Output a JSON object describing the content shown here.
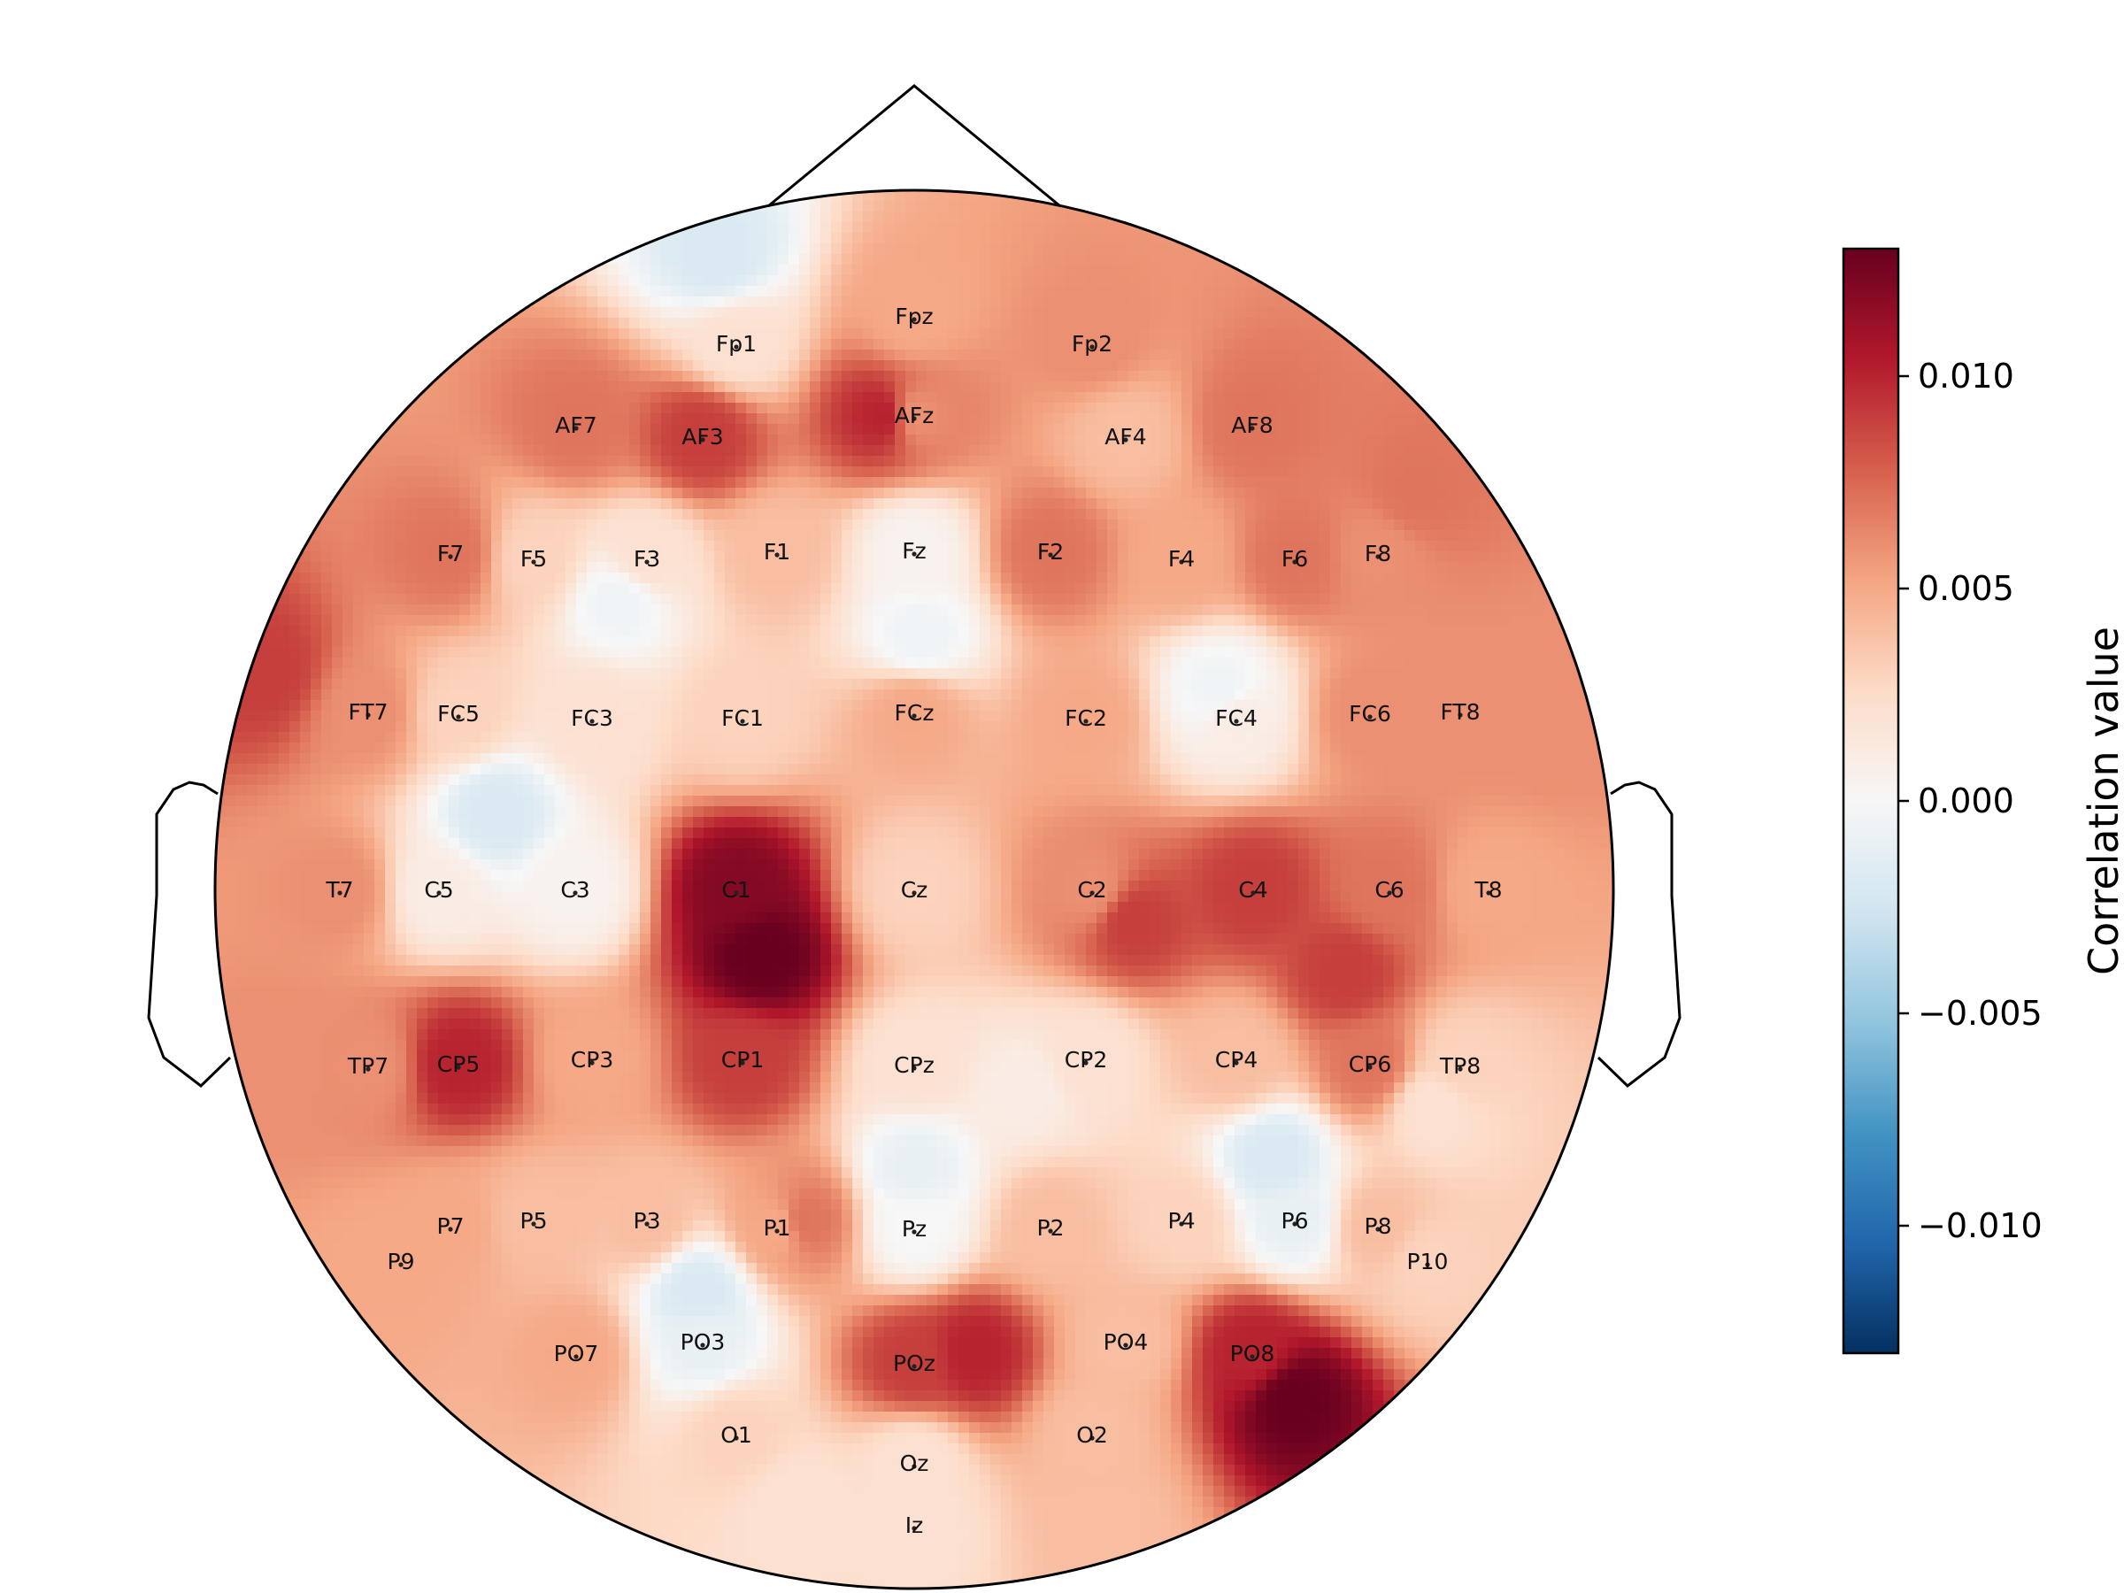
{
  "chart_data": {
    "type": "heatmap",
    "subtype": "eeg-topomap",
    "colormap": "RdBu_r",
    "colors": [
      "#053061",
      "#2166ac",
      "#4393c3",
      "#92c5de",
      "#d1e5f0",
      "#f7f7f7",
      "#fddbc7",
      "#f4a582",
      "#d6604d",
      "#b2182b",
      "#67001f"
    ],
    "colorbar": {
      "label": "Correlation value",
      "vmin": -0.013,
      "vmax": 0.013,
      "ticks": [
        {
          "value": -0.01,
          "label": "−0.010"
        },
        {
          "value": -0.005,
          "label": "−0.005"
        },
        {
          "value": 0.0,
          "label": "0.000"
        },
        {
          "value": 0.005,
          "label": "0.005"
        },
        {
          "value": 0.01,
          "label": "0.010"
        }
      ]
    },
    "electrodes": [
      {
        "name": "Fp1",
        "value": 0.002
      },
      {
        "name": "Fpz",
        "value": 0.005
      },
      {
        "name": "Fp2",
        "value": 0.006
      },
      {
        "name": "AF7",
        "value": 0.007
      },
      {
        "name": "AF3",
        "value": 0.009
      },
      {
        "name": "AFz",
        "value": 0.006
      },
      {
        "name": "AF4",
        "value": 0.004
      },
      {
        "name": "AF8",
        "value": 0.007
      },
      {
        "name": "F7",
        "value": 0.007
      },
      {
        "name": "F5",
        "value": 0.003
      },
      {
        "name": "F3",
        "value": 0.002
      },
      {
        "name": "F1",
        "value": 0.004
      },
      {
        "name": "Fz",
        "value": 0.0005
      },
      {
        "name": "F2",
        "value": 0.007
      },
      {
        "name": "F4",
        "value": 0.005
      },
      {
        "name": "F6",
        "value": 0.007
      },
      {
        "name": "F8",
        "value": 0.006
      },
      {
        "name": "FT7",
        "value": 0.006
      },
      {
        "name": "FC5",
        "value": 0.003
      },
      {
        "name": "FC3",
        "value": 0.002
      },
      {
        "name": "FC1",
        "value": 0.003
      },
      {
        "name": "FCz",
        "value": 0.005
      },
      {
        "name": "FC2",
        "value": 0.005
      },
      {
        "name": "FC4",
        "value": 0.001
      },
      {
        "name": "FC6",
        "value": 0.006
      },
      {
        "name": "FT8",
        "value": 0.006
      },
      {
        "name": "T7",
        "value": 0.006
      },
      {
        "name": "C5",
        "value": 0.001
      },
      {
        "name": "C3",
        "value": 0.0005
      },
      {
        "name": "C1",
        "value": 0.012
      },
      {
        "name": "Cz",
        "value": 0.003
      },
      {
        "name": "C2",
        "value": 0.006
      },
      {
        "name": "C4",
        "value": 0.009
      },
      {
        "name": "C6",
        "value": 0.007
      },
      {
        "name": "T8",
        "value": 0.005
      },
      {
        "name": "TP7",
        "value": 0.006
      },
      {
        "name": "CP5",
        "value": 0.01
      },
      {
        "name": "CP3",
        "value": 0.005
      },
      {
        "name": "CP1",
        "value": 0.009
      },
      {
        "name": "CPz",
        "value": 0.002
      },
      {
        "name": "CP2",
        "value": 0.002
      },
      {
        "name": "CP4",
        "value": 0.004
      },
      {
        "name": "CP6",
        "value": 0.007
      },
      {
        "name": "TP8",
        "value": 0.003
      },
      {
        "name": "P9",
        "value": 0.005
      },
      {
        "name": "P7",
        "value": 0.005
      },
      {
        "name": "P5",
        "value": 0.004
      },
      {
        "name": "P3",
        "value": 0.004
      },
      {
        "name": "P1",
        "value": 0.005
      },
      {
        "name": "Pz",
        "value": 0.0
      },
      {
        "name": "P2",
        "value": 0.004
      },
      {
        "name": "P4",
        "value": 0.003
      },
      {
        "name": "P6",
        "value": -0.001
      },
      {
        "name": "P8",
        "value": 0.004
      },
      {
        "name": "P10",
        "value": 0.003
      },
      {
        "name": "PO7",
        "value": 0.005
      },
      {
        "name": "PO3",
        "value": -0.001
      },
      {
        "name": "POz",
        "value": 0.009
      },
      {
        "name": "PO4",
        "value": 0.004
      },
      {
        "name": "PO8",
        "value": 0.01
      },
      {
        "name": "O1",
        "value": 0.003
      },
      {
        "name": "Oz",
        "value": 0.002
      },
      {
        "name": "O2",
        "value": 0.004
      },
      {
        "name": "Iz",
        "value": 0.002
      }
    ]
  }
}
